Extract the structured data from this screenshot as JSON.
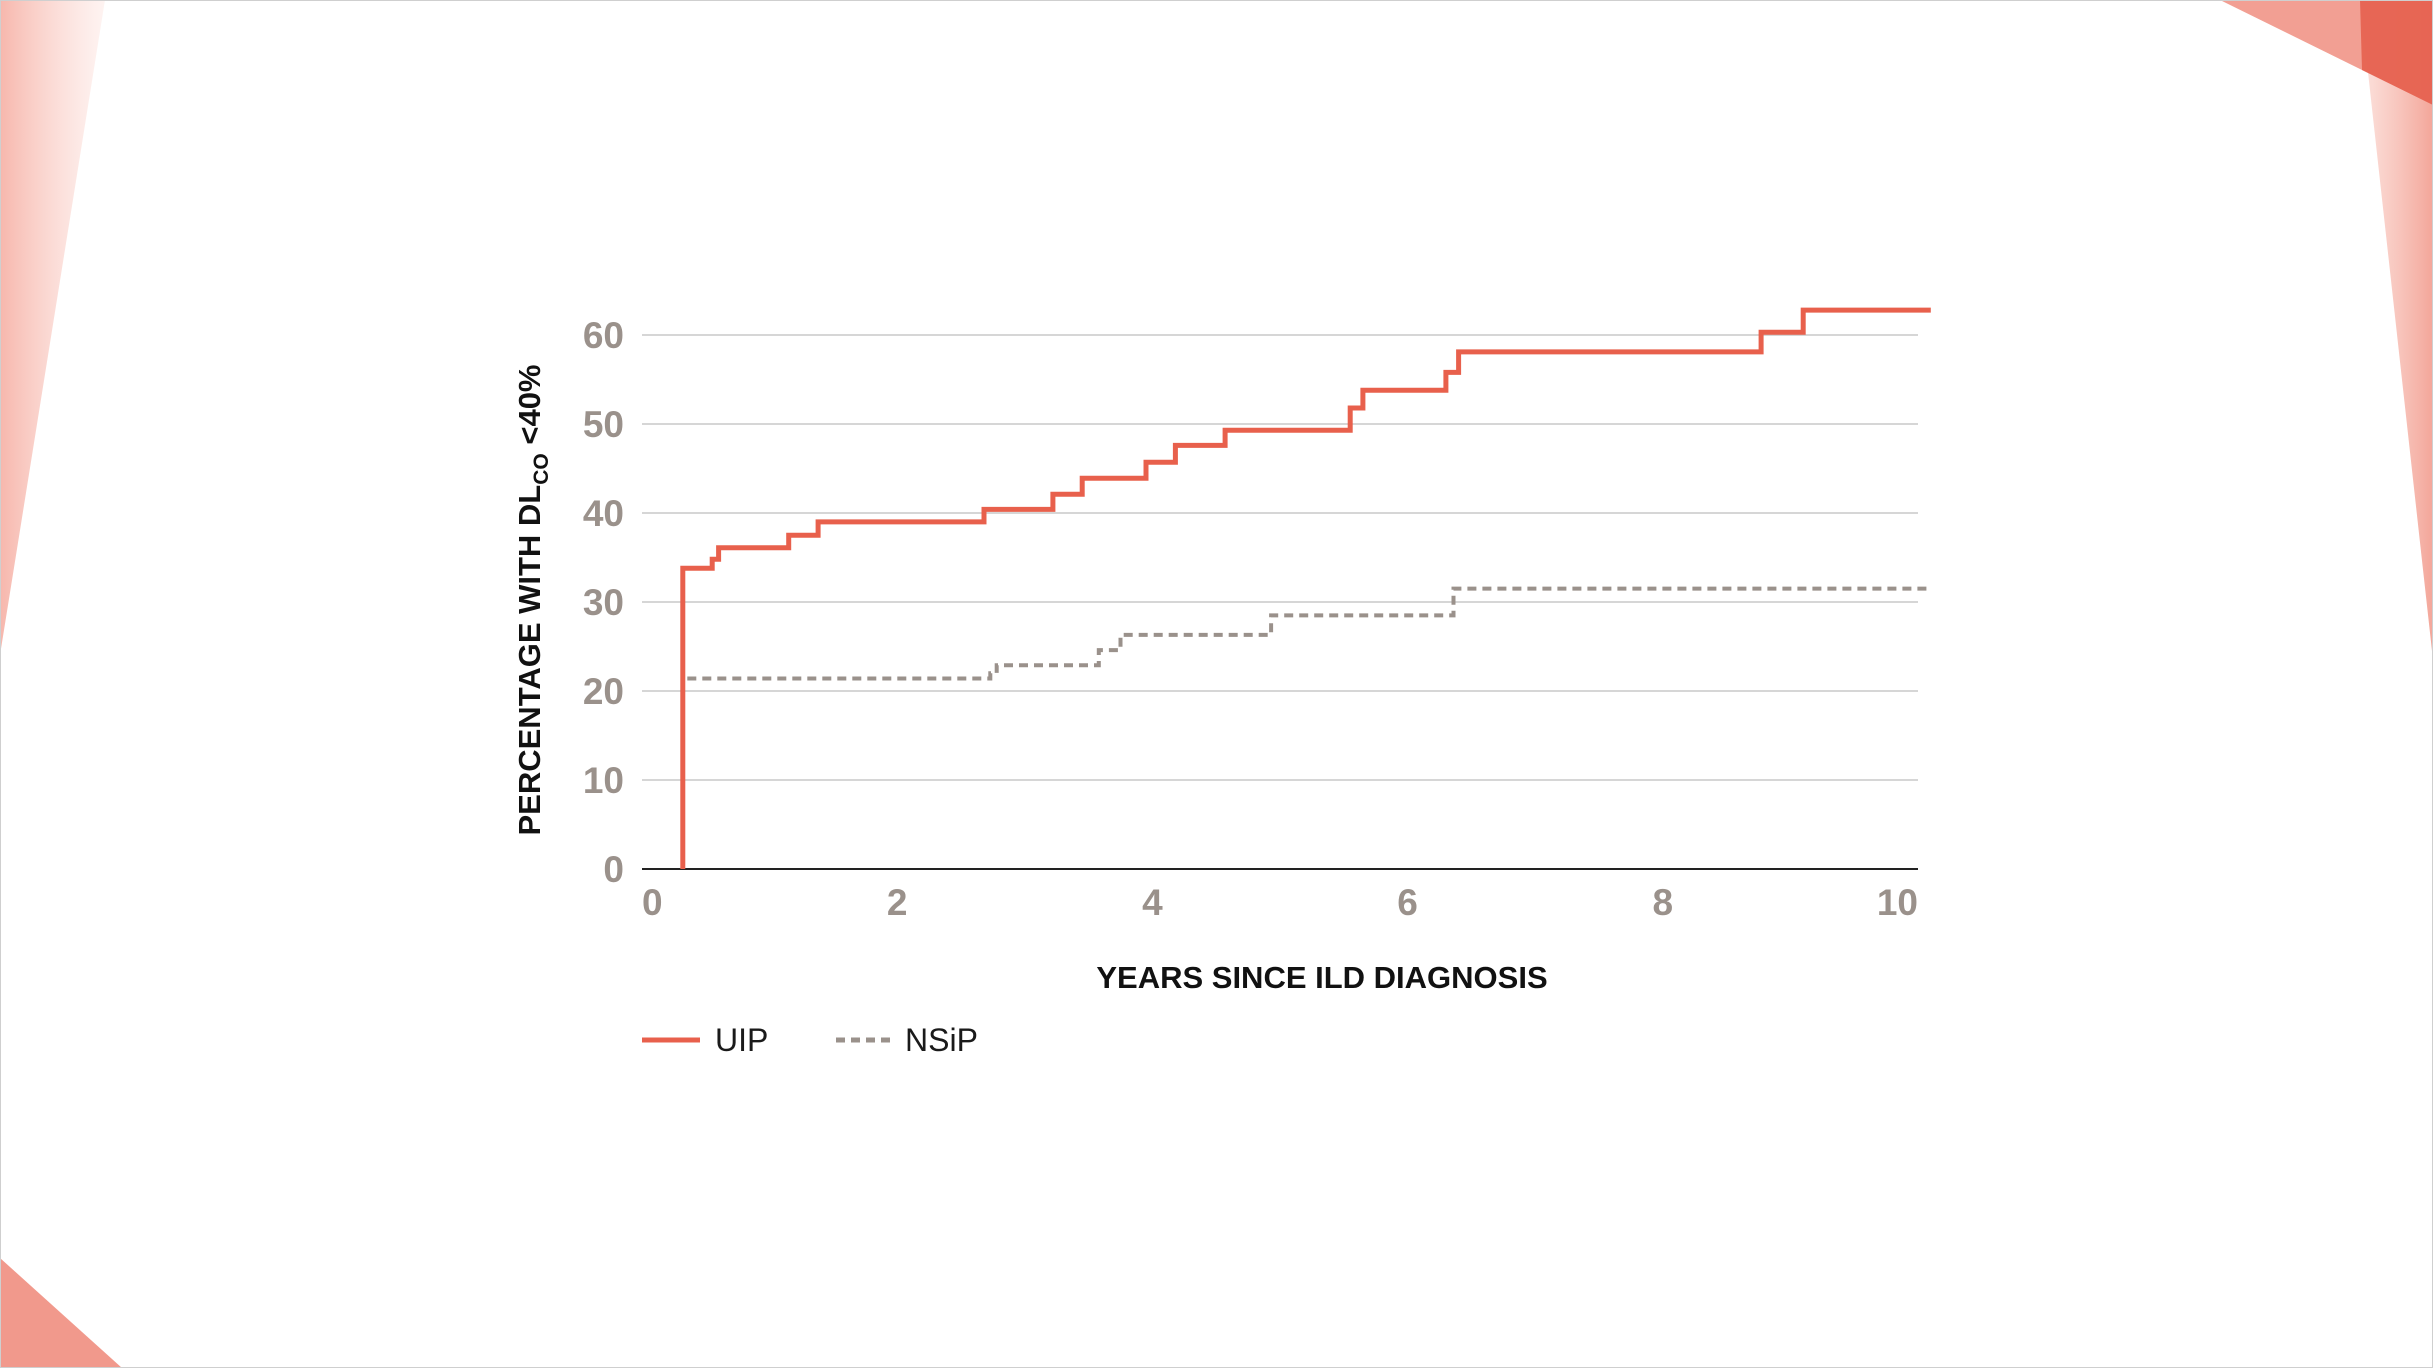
{
  "chart_data": {
    "type": "line",
    "step": true,
    "xlabel": "YEARS SINCE ILD DIAGNOSIS",
    "ylabel": {
      "prefix": "PERCENTAGE WITH DL",
      "subscript": "CO",
      "suffix": " <40%"
    },
    "xlim": [
      0,
      10
    ],
    "ylim": [
      0,
      60
    ],
    "xticks": [
      0,
      2,
      4,
      6,
      8,
      10
    ],
    "yticks": [
      0,
      10,
      20,
      30,
      40,
      50,
      60
    ],
    "grid": "horizontal",
    "legend_position": "bottom-left",
    "series": [
      {
        "name": "UIP",
        "style": "solid",
        "color": "#e8604c",
        "x": [
          0.32,
          0.32,
          0.55,
          0.6,
          1.15,
          1.38,
          2.68,
          3.22,
          3.45,
          3.95,
          4.18,
          4.57,
          5.55,
          5.65,
          6.3,
          6.4,
          8.77,
          9.1,
          10.1
        ],
        "y": [
          0.0,
          33.8,
          34.8,
          36.1,
          37.5,
          39.0,
          40.4,
          42.1,
          43.9,
          45.7,
          47.6,
          49.3,
          51.8,
          53.8,
          55.8,
          58.1,
          60.3,
          62.8,
          62.8
        ]
      },
      {
        "name": "NSiP",
        "style": "dashed",
        "color": "#9a918b",
        "x": [
          0.32,
          0.32,
          2.73,
          2.78,
          3.58,
          3.75,
          4.93,
          6.36,
          10.1
        ],
        "y": [
          0.0,
          21.4,
          22.0,
          22.9,
          24.6,
          26.3,
          28.5,
          31.5,
          31.5
        ]
      }
    ]
  },
  "theme": {
    "accent": "#e8604c",
    "secondary": "#9a918b",
    "gridline": "#c8c8c8",
    "decor_light": "#f7c5bc",
    "decor_mid": "#ef8f81",
    "decor_dark": "#e5614f"
  }
}
